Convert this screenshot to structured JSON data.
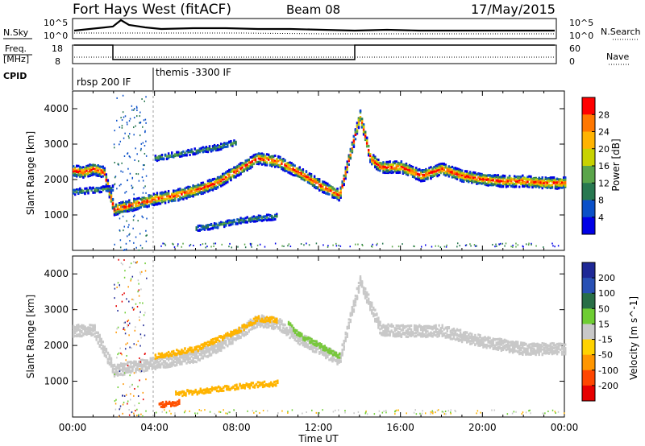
{
  "header": {
    "radar": "Fort Hays West (fitACF)",
    "beam": "Beam 08",
    "date": "17/May/2015"
  },
  "status_panels": {
    "nsky_label": "N.Sky",
    "nsearch_label": "N.Search",
    "freq_label_1": "Freq.",
    "freq_label_2": "[MHz]",
    "nave_label": "Nave",
    "cpid_label": "CPID",
    "nsky_ticks": [
      "10^5",
      "10^0"
    ],
    "nsearch_ticks": [
      "10^5",
      "10^0"
    ],
    "freq_ticks": [
      "18",
      "8"
    ],
    "nave_ticks": [
      "60",
      "0"
    ],
    "cpid_segments": [
      {
        "label": "rbsp 200 IF",
        "start_hour": 0.0
      },
      {
        "label": "themis -3300 IF",
        "start_hour": 4.0
      }
    ]
  },
  "chart_data": [
    {
      "type": "heatmap",
      "name": "power",
      "ylabel": "Slant Range [km]",
      "colorbar_label": "Power [dB]",
      "colorbar_ticks": [
        "28",
        "24",
        "20",
        "16",
        "12",
        "8",
        "4"
      ],
      "colorbar_values": [
        28,
        24,
        20,
        16,
        12,
        8,
        4
      ],
      "colorbar_colors": [
        "#ff0000",
        "#ff7700",
        "#ffb300",
        "#c8d200",
        "#5aa54a",
        "#287850",
        "#0a50c8",
        "#0000e6"
      ],
      "y_ticks": [
        "4000",
        "3000",
        "2000",
        "1000"
      ],
      "y_tick_values": [
        4000,
        3000,
        2000,
        1000
      ],
      "ylim": [
        0,
        4500
      ],
      "xlim_hours": [
        0,
        24
      ],
      "traces": [
        {
          "x": [
            0,
            0.5,
            1,
            1.5,
            2,
            3,
            4,
            5,
            6,
            7,
            8,
            9,
            10,
            11,
            12,
            13,
            14,
            14.5,
            15,
            16,
            17,
            18,
            19,
            20,
            21,
            22,
            23,
            24
          ],
          "y": [
            2250,
            2200,
            2300,
            2200,
            1150,
            1300,
            1450,
            1550,
            1700,
            1900,
            2250,
            2600,
            2500,
            2200,
            1850,
            1550,
            3800,
            2600,
            2350,
            2350,
            2100,
            2300,
            2100,
            2000,
            1950,
            1950,
            1900,
            1900
          ]
        },
        {
          "x": [
            4,
            5,
            6,
            7,
            8
          ],
          "y": [
            2600,
            2700,
            2800,
            2900,
            3050
          ]
        },
        {
          "x": [
            6,
            7,
            8,
            9,
            10
          ],
          "y": [
            620,
            700,
            820,
            900,
            950
          ]
        },
        {
          "x": [
            0,
            1,
            2
          ],
          "y": [
            1650,
            1700,
            1750
          ]
        }
      ]
    },
    {
      "type": "heatmap",
      "name": "velocity",
      "ylabel": "Slant Range [km]",
      "xlabel": "Time UT",
      "colorbar_label": "Velocity [m s^-1]",
      "colorbar_ticks": [
        "200",
        "100",
        "50",
        "15",
        "-15",
        "-50",
        "-100",
        "-200"
      ],
      "colorbar_values": [
        200,
        100,
        50,
        15,
        -15,
        -50,
        -100,
        -200
      ],
      "colorbar_colors": [
        "#1e2896",
        "#2850b4",
        "#286e46",
        "#6ecd32",
        "#c8c8c8",
        "#ffd200",
        "#ff9600",
        "#ff4600",
        "#e60000"
      ],
      "y_ticks": [
        "4000",
        "3000",
        "2000",
        "1000"
      ],
      "y_tick_values": [
        4000,
        3000,
        2000,
        1000
      ],
      "x_ticks": [
        "00:00",
        "04:00",
        "08:00",
        "12:00",
        "16:00",
        "20:00",
        "00:00"
      ],
      "x_tick_hours": [
        0,
        4,
        8,
        12,
        16,
        20,
        24
      ],
      "ylim": [
        0,
        4500
      ],
      "xlim_hours": [
        0,
        24
      ],
      "traces": [
        {
          "x": [
            0,
            1,
            2,
            3,
            4,
            5,
            6,
            7,
            8,
            9,
            10,
            11,
            12,
            13,
            14,
            15,
            16,
            18,
            20,
            22,
            24
          ],
          "y": [
            2400,
            2450,
            1300,
            1400,
            1500,
            1600,
            1700,
            1950,
            2300,
            2700,
            2600,
            2200,
            1900,
            1600,
            3800,
            2450,
            2400,
            2400,
            2100,
            1900,
            1900
          ],
          "color": "#c8c8c8"
        },
        {
          "x": [
            4,
            6,
            8,
            9,
            10
          ],
          "y": [
            1700,
            1900,
            2400,
            2750,
            2700
          ],
          "color": "#ffb400"
        },
        {
          "x": [
            10.5,
            11,
            12,
            13
          ],
          "y": [
            2600,
            2300,
            2000,
            1700
          ],
          "color": "#78c83c"
        },
        {
          "x": [
            5,
            6,
            7,
            8,
            9,
            10
          ],
          "y": [
            650,
            700,
            780,
            850,
            900,
            950
          ],
          "color": "#ffb400"
        },
        {
          "x": [
            4.2,
            4.8,
            5.2
          ],
          "y": [
            350,
            350,
            400
          ],
          "color": "#ff5000"
        }
      ]
    }
  ]
}
